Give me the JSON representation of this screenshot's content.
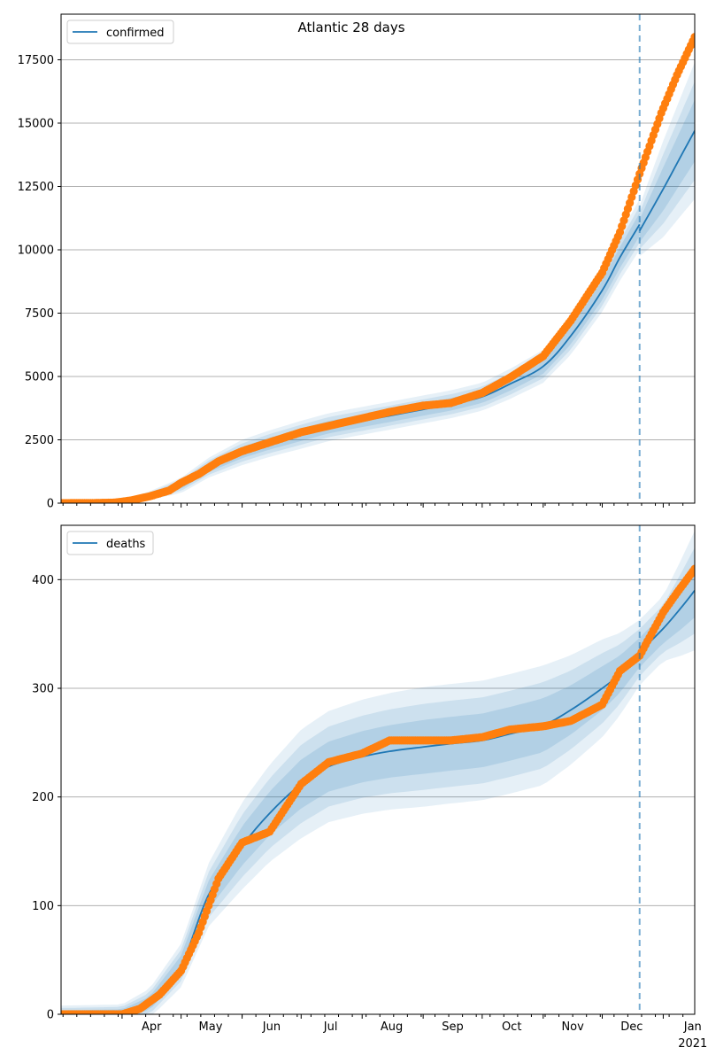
{
  "colors": {
    "model_line": "#1f77b4",
    "observed_points": "#ff7f0e",
    "band": "#1f77b4",
    "cutoff_line": "#1f77b4",
    "grid": "#b0b0b0"
  },
  "chart_data": [
    {
      "type": "line",
      "title": "Atlantic 28 days",
      "legend": [
        "confirmed"
      ],
      "legend_position": "top-left",
      "grid": "horizontal",
      "x_range": [
        "2020-03-01",
        "2021-01-17"
      ],
      "ylim": [
        0,
        19300
      ],
      "yticks": [
        0,
        2500,
        5000,
        7500,
        10000,
        12500,
        15000,
        17500
      ],
      "cutoff_date": "2020-12-20",
      "series": [
        {
          "name": "confirmed",
          "points": [
            [
              "2020-03-01",
              0
            ],
            [
              "2020-03-15",
              10
            ],
            [
              "2020-04-01",
              80
            ],
            [
              "2020-04-15",
              300
            ],
            [
              "2020-05-01",
              700
            ],
            [
              "2020-05-15",
              1400
            ],
            [
              "2020-06-01",
              2000
            ],
            [
              "2020-06-15",
              2350
            ],
            [
              "2020-07-01",
              2700
            ],
            [
              "2020-07-15",
              3000
            ],
            [
              "2020-08-01",
              3250
            ],
            [
              "2020-08-15",
              3450
            ],
            [
              "2020-09-01",
              3700
            ],
            [
              "2020-09-15",
              3900
            ],
            [
              "2020-10-01",
              4200
            ],
            [
              "2020-10-15",
              4700
            ],
            [
              "2020-11-01",
              5400
            ],
            [
              "2020-11-15",
              6600
            ],
            [
              "2020-12-01",
              8400
            ],
            [
              "2020-12-10",
              9700
            ],
            [
              "2020-12-20",
              11000
            ]
          ],
          "forecast": [
            [
              "2020-12-20",
              10750
            ],
            [
              "2021-01-01",
              12400
            ],
            [
              "2021-01-10",
              13700
            ],
            [
              "2021-01-17",
              14700
            ]
          ],
          "band_width": [
            [
              "2020-03-01",
              0
            ],
            [
              "2020-04-01",
              50
            ],
            [
              "2020-05-01",
              300
            ],
            [
              "2020-06-01",
              500
            ],
            [
              "2020-07-01",
              550
            ],
            [
              "2020-09-01",
              550
            ],
            [
              "2020-10-01",
              550
            ],
            [
              "2020-11-01",
              650
            ],
            [
              "2020-12-01",
              850
            ],
            [
              "2020-12-20",
              1000
            ],
            [
              "2021-01-01",
              1900
            ],
            [
              "2021-01-17",
              2700
            ]
          ]
        }
      ],
      "observed": [
        [
          "2020-03-01",
          0
        ],
        [
          "2020-03-15",
          5
        ],
        [
          "2020-03-28",
          20
        ],
        [
          "2020-04-05",
          100
        ],
        [
          "2020-04-15",
          270
        ],
        [
          "2020-04-25",
          500
        ],
        [
          "2020-05-01",
          800
        ],
        [
          "2020-05-10",
          1150
        ],
        [
          "2020-05-20",
          1650
        ],
        [
          "2020-06-01",
          2050
        ],
        [
          "2020-06-15",
          2400
        ],
        [
          "2020-07-01",
          2800
        ],
        [
          "2020-07-15",
          3050
        ],
        [
          "2020-08-01",
          3350
        ],
        [
          "2020-08-15",
          3600
        ],
        [
          "2020-09-01",
          3850
        ],
        [
          "2020-09-15",
          3950
        ],
        [
          "2020-10-01",
          4350
        ],
        [
          "2020-10-15",
          4950
        ],
        [
          "2020-11-01",
          5800
        ],
        [
          "2020-11-15",
          7200
        ],
        [
          "2020-12-01",
          9100
        ],
        [
          "2020-12-10",
          10700
        ],
        [
          "2020-12-20",
          13000
        ],
        [
          "2020-12-31",
          15400
        ],
        [
          "2021-01-08",
          16900
        ],
        [
          "2021-01-17",
          18400
        ]
      ],
      "xticks": [
        {
          "label": "Apr",
          "date": "2020-04-01"
        },
        {
          "label": "May",
          "date": "2020-05-01"
        },
        {
          "label": "Jun",
          "date": "2020-06-01"
        },
        {
          "label": "Jul",
          "date": "2020-07-01"
        },
        {
          "label": "Aug",
          "date": "2020-08-01"
        },
        {
          "label": "Sep",
          "date": "2020-09-01"
        },
        {
          "label": "Oct",
          "date": "2020-10-01"
        },
        {
          "label": "Nov",
          "date": "2020-11-01"
        },
        {
          "label": "Dec",
          "date": "2020-12-01"
        },
        {
          "label": "Jan",
          "date": "2021-01-01",
          "sublabel": "2021"
        }
      ],
      "show_xtick_labels": false
    },
    {
      "type": "line",
      "title": "",
      "legend": [
        "deaths"
      ],
      "legend_position": "top-left",
      "grid": "horizontal",
      "x_range": [
        "2020-03-01",
        "2021-01-17"
      ],
      "ylim": [
        0,
        450
      ],
      "yticks": [
        0,
        100,
        200,
        300,
        400
      ],
      "cutoff_date": "2020-12-20",
      "series": [
        {
          "name": "deaths",
          "points": [
            [
              "2020-03-01",
              0
            ],
            [
              "2020-04-01",
              1
            ],
            [
              "2020-04-15",
              10
            ],
            [
              "2020-05-01",
              45
            ],
            [
              "2020-05-15",
              110
            ],
            [
              "2020-06-01",
              155
            ],
            [
              "2020-06-15",
              185
            ],
            [
              "2020-07-01",
              212
            ],
            [
              "2020-07-15",
              228
            ],
            [
              "2020-08-01",
              237
            ],
            [
              "2020-08-15",
              242
            ],
            [
              "2020-09-01",
              246
            ],
            [
              "2020-09-15",
              249
            ],
            [
              "2020-10-01",
              252
            ],
            [
              "2020-10-15",
              258
            ],
            [
              "2020-11-01",
              266
            ],
            [
              "2020-11-15",
              280
            ],
            [
              "2020-12-01",
              300
            ],
            [
              "2020-12-10",
              313
            ],
            [
              "2020-12-20",
              333
            ],
            [
              "2021-01-01",
              355
            ],
            [
              "2021-01-10",
              374
            ],
            [
              "2021-01-17",
              390
            ]
          ],
          "band_width": [
            [
              "2020-03-01",
              8
            ],
            [
              "2020-04-01",
              8
            ],
            [
              "2020-05-01",
              20
            ],
            [
              "2020-06-01",
              40
            ],
            [
              "2020-07-01",
              50
            ],
            [
              "2020-09-01",
              55
            ],
            [
              "2020-11-01",
              55
            ],
            [
              "2020-12-01",
              45
            ],
            [
              "2020-12-20",
              30
            ],
            [
              "2021-01-01",
              30
            ],
            [
              "2021-01-17",
              55
            ]
          ]
        }
      ],
      "observed": [
        [
          "2020-03-01",
          0
        ],
        [
          "2020-04-01",
          0
        ],
        [
          "2020-04-10",
          5
        ],
        [
          "2020-04-20",
          18
        ],
        [
          "2020-05-01",
          40
        ],
        [
          "2020-05-10",
          75
        ],
        [
          "2020-05-20",
          125
        ],
        [
          "2020-06-01",
          158
        ],
        [
          "2020-06-15",
          168
        ],
        [
          "2020-07-01",
          212
        ],
        [
          "2020-07-15",
          232
        ],
        [
          "2020-08-01",
          240
        ],
        [
          "2020-08-15",
          252
        ],
        [
          "2020-09-01",
          252
        ],
        [
          "2020-09-15",
          252
        ],
        [
          "2020-10-01",
          255
        ],
        [
          "2020-10-15",
          262
        ],
        [
          "2020-11-01",
          265
        ],
        [
          "2020-11-15",
          270
        ],
        [
          "2020-12-01",
          285
        ],
        [
          "2020-12-10",
          316
        ],
        [
          "2020-12-20",
          330
        ],
        [
          "2021-01-01",
          370
        ],
        [
          "2021-01-08",
          388
        ],
        [
          "2021-01-17",
          410
        ]
      ],
      "xticks": [
        {
          "label": "Apr",
          "date": "2020-04-01"
        },
        {
          "label": "May",
          "date": "2020-05-01"
        },
        {
          "label": "Jun",
          "date": "2020-06-01"
        },
        {
          "label": "Jul",
          "date": "2020-07-01"
        },
        {
          "label": "Aug",
          "date": "2020-08-01"
        },
        {
          "label": "Sep",
          "date": "2020-09-01"
        },
        {
          "label": "Oct",
          "date": "2020-10-01"
        },
        {
          "label": "Nov",
          "date": "2020-11-01"
        },
        {
          "label": "Dec",
          "date": "2020-12-01"
        },
        {
          "label": "Jan",
          "date": "2021-01-01",
          "sublabel": "2021"
        }
      ],
      "show_xtick_labels": true
    }
  ]
}
